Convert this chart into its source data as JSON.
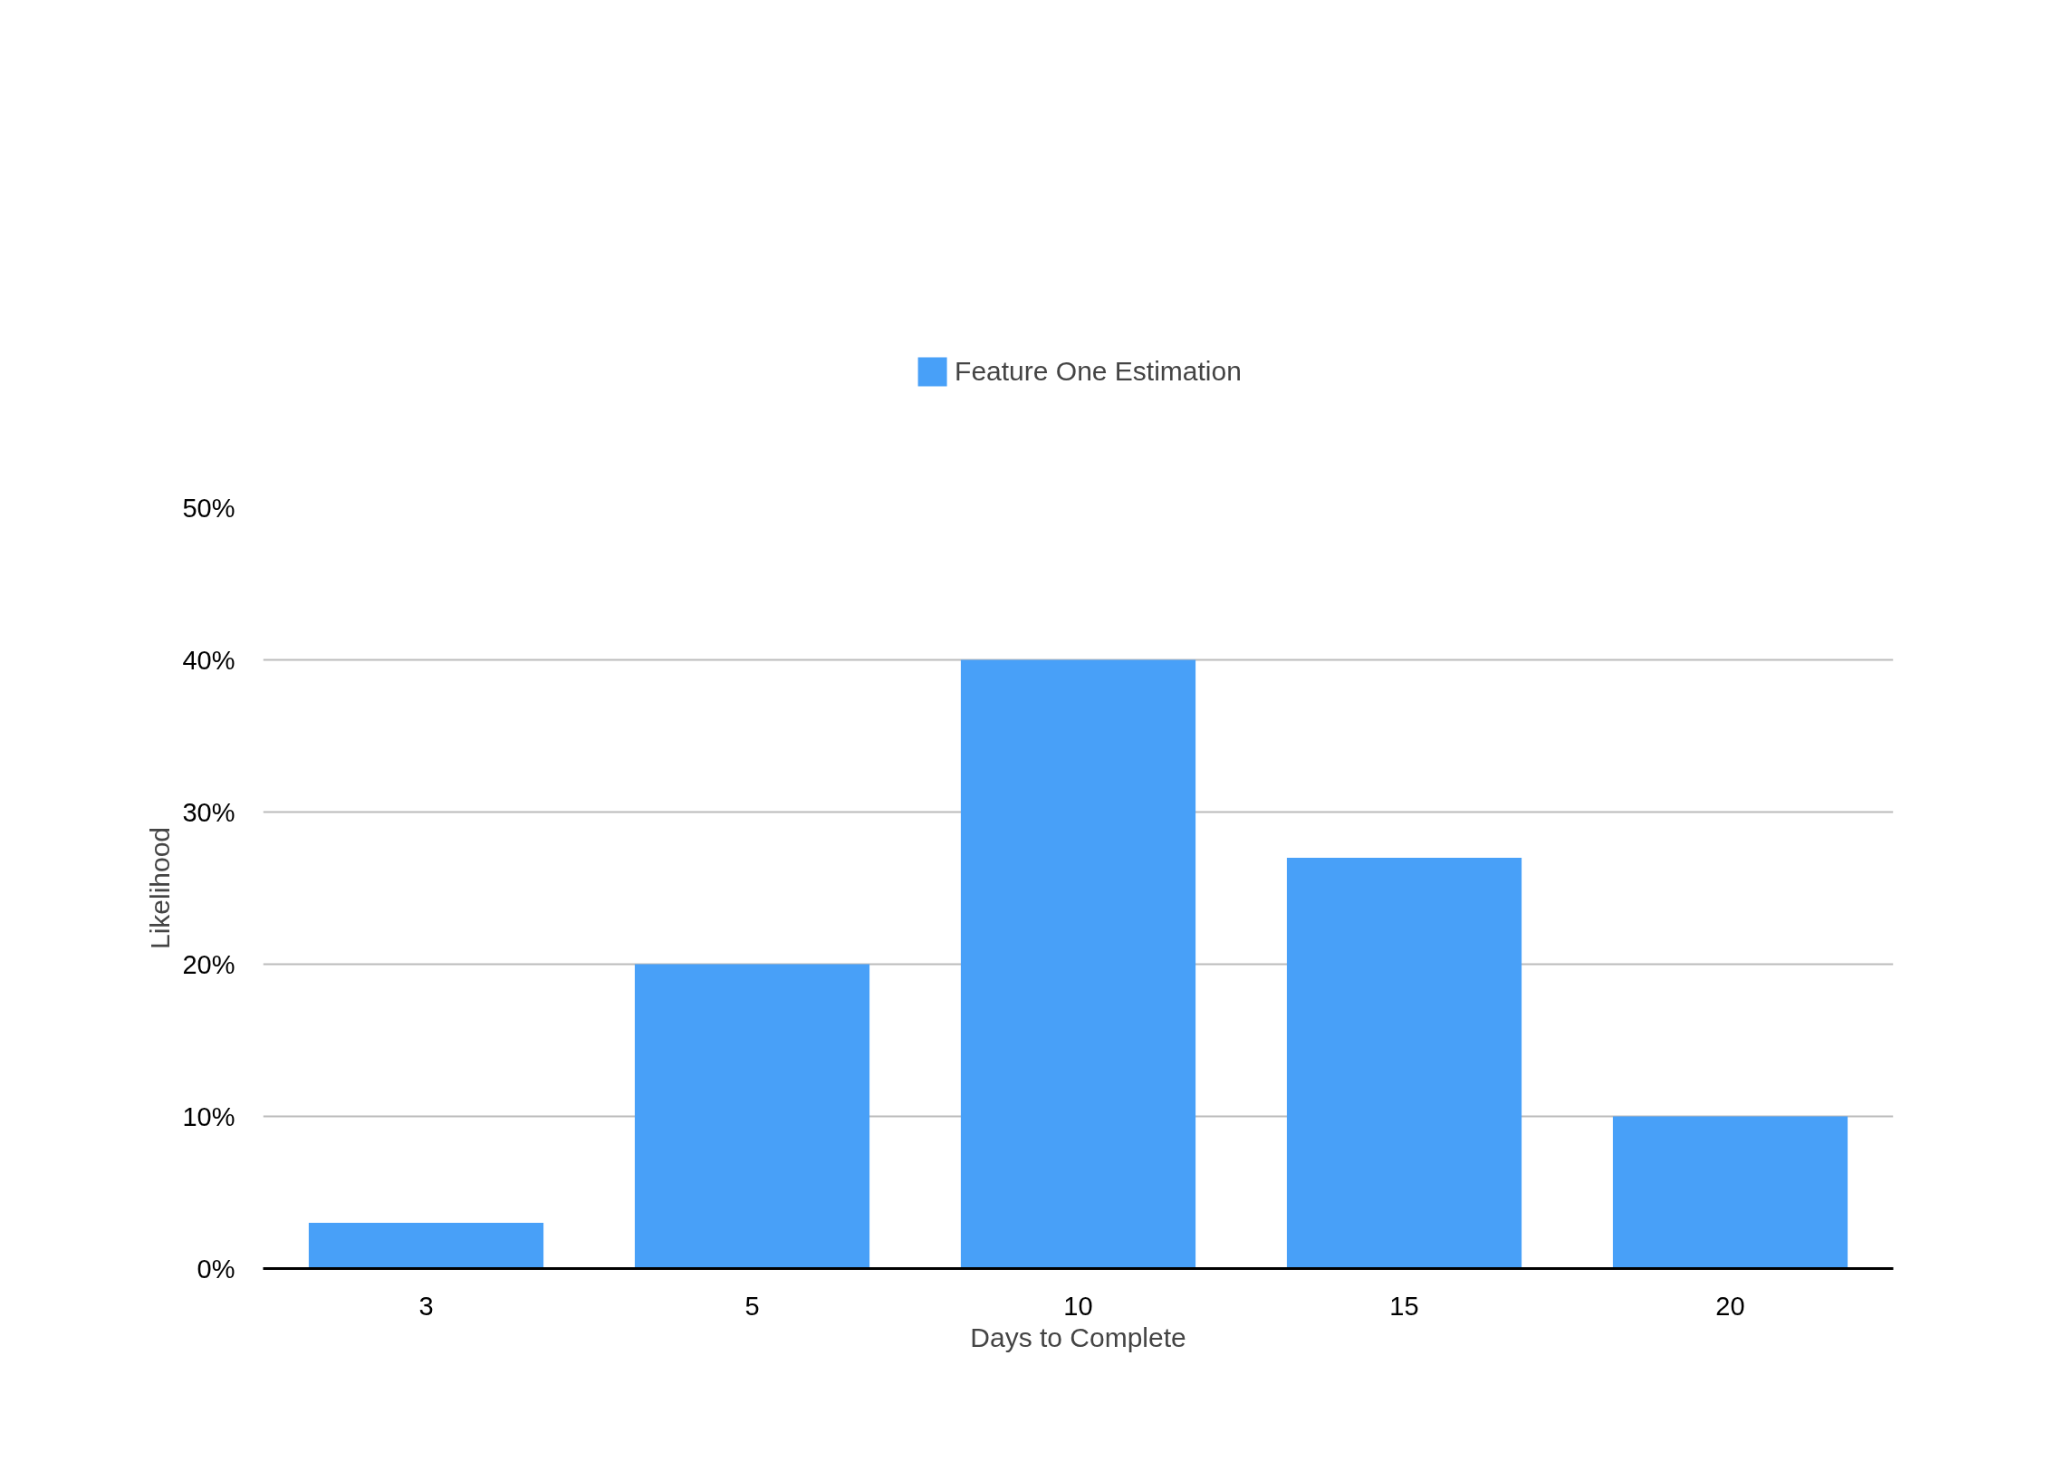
{
  "chart_data": {
    "type": "bar",
    "xlabel": "Days to Complete",
    "ylabel": "Likelihood",
    "categories": [
      "3",
      "5",
      "10",
      "15",
      "20"
    ],
    "series": [
      {
        "name": "Feature One Estimation",
        "color": "#48a0f8",
        "values": [
          3,
          20,
          40,
          27,
          10
        ]
      }
    ],
    "ylim": [
      0,
      50
    ],
    "yticks": [
      {
        "value": 0,
        "label": "0%"
      },
      {
        "value": 10,
        "label": "10%"
      },
      {
        "value": 20,
        "label": "20%"
      },
      {
        "value": 30,
        "label": "30%"
      },
      {
        "value": 40,
        "label": "40%"
      },
      {
        "value": 50,
        "label": "50%"
      }
    ],
    "grid": "y",
    "legend": "top"
  }
}
